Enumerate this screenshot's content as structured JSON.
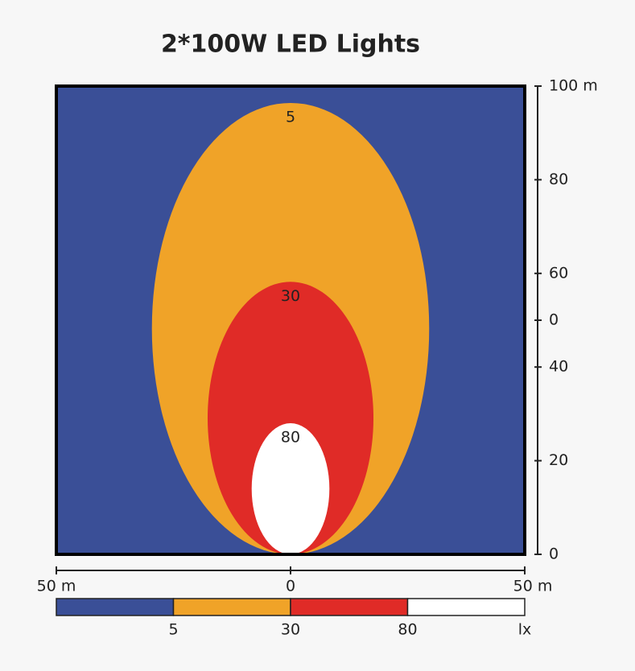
{
  "chart_data": {
    "type": "contour",
    "title": "2*100W LED Lights",
    "background_color": "#3a4f97",
    "contours": [
      {
        "value": 5,
        "reach": 96.4,
        "half_width": 29.6,
        "color": "#f0a328"
      },
      {
        "value": 30,
        "reach": 58.2,
        "half_width": 17.7,
        "color": "#e02b27"
      },
      {
        "value": 80,
        "reach": 28,
        "half_width": 8.3,
        "color": "#ffffff"
      }
    ],
    "xlim": [
      -50,
      50
    ],
    "xticks": [
      {
        "value": -50,
        "label": "50 m"
      },
      0,
      {
        "value": 50,
        "label": "50 m"
      }
    ],
    "ylim": [
      0,
      100
    ],
    "yticks": [
      {
        "value": 100,
        "label": "100 m"
      },
      80,
      60,
      {
        "value": 50,
        "label": "0"
      },
      40,
      20,
      0
    ],
    "colorbar_unit": "lx"
  }
}
